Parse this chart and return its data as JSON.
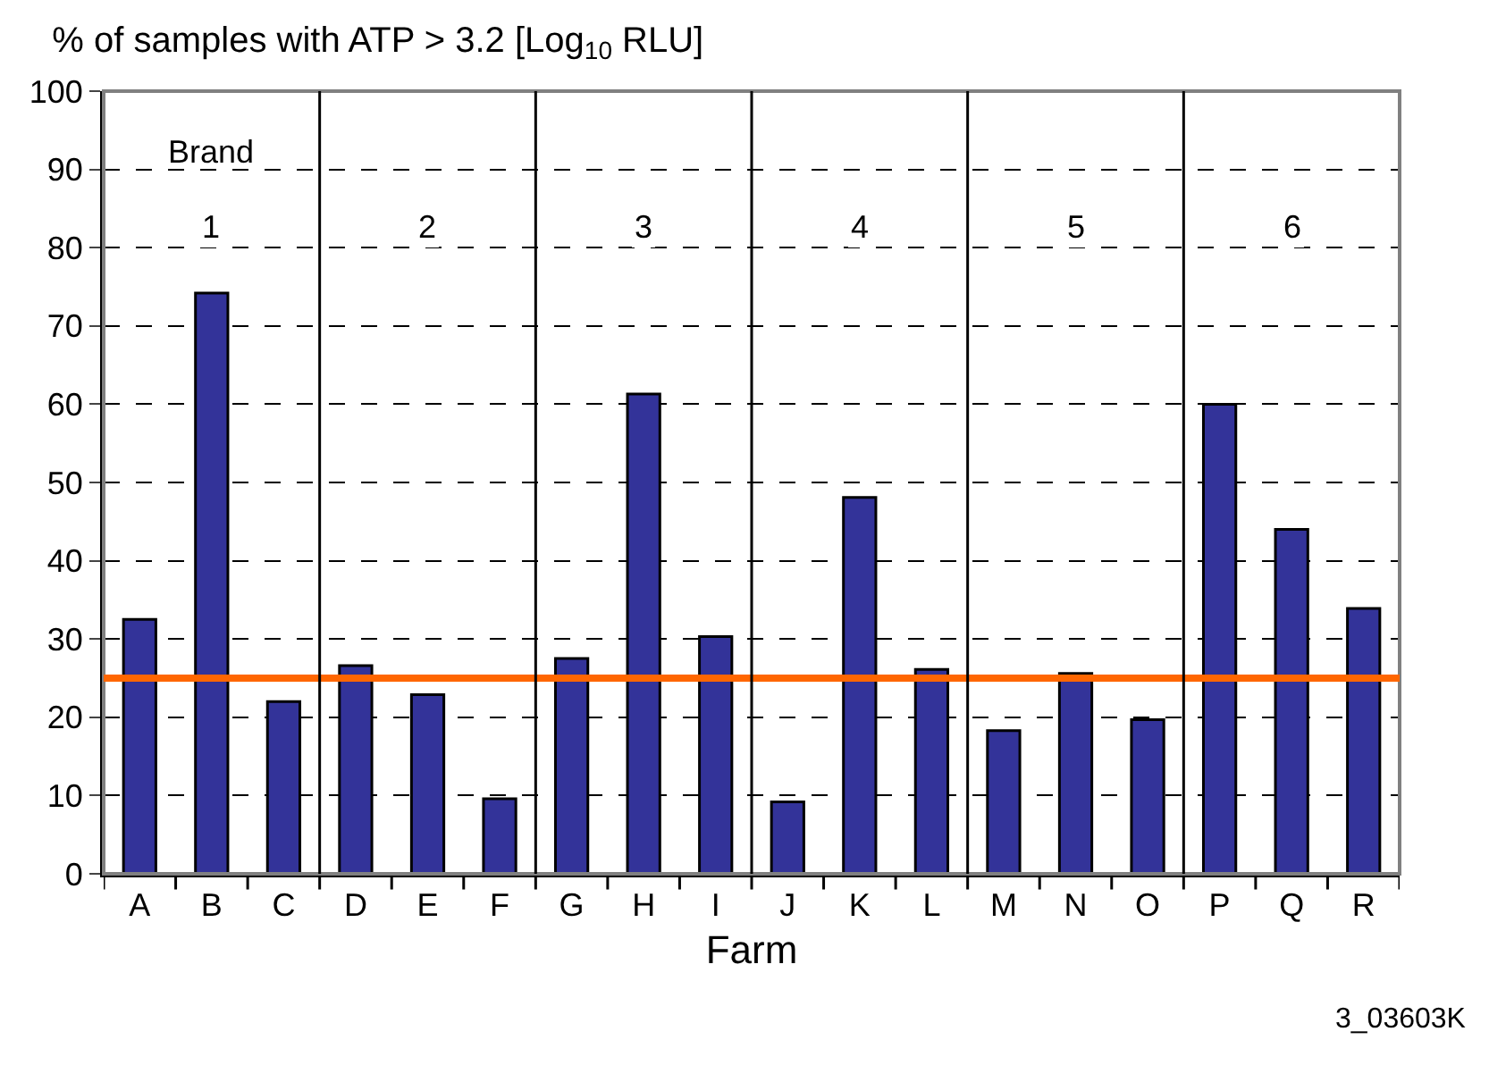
{
  "chart_data": {
    "type": "bar",
    "title": "% of samples with ATP > 3.2 [Log$_{10}$ RLU]",
    "xlabel": "Farm",
    "categories": [
      "A",
      "B",
      "C",
      "D",
      "E",
      "F",
      "G",
      "H",
      "I",
      "J",
      "K",
      "L",
      "M",
      "N",
      "O",
      "P",
      "Q",
      "R"
    ],
    "values": [
      32.5,
      74.2,
      22,
      26.6,
      22.9,
      9.6,
      27.5,
      61.3,
      30.3,
      9.2,
      48.1,
      26.1,
      18.3,
      25.6,
      19.7,
      60,
      44,
      33.9
    ],
    "color": "#333399",
    "ylim": [
      0,
      100
    ],
    "yticks": [
      0,
      10,
      20,
      30,
      40,
      50,
      60,
      70,
      80,
      90,
      100
    ],
    "grid": "y",
    "ref_lines": [
      {
        "axis": "y",
        "value": 25,
        "color": "#ff6600"
      }
    ],
    "annotations": [
      "Brand",
      "1",
      "2",
      "3",
      "4",
      "5",
      "6",
      "3_03603K"
    ]
  }
}
